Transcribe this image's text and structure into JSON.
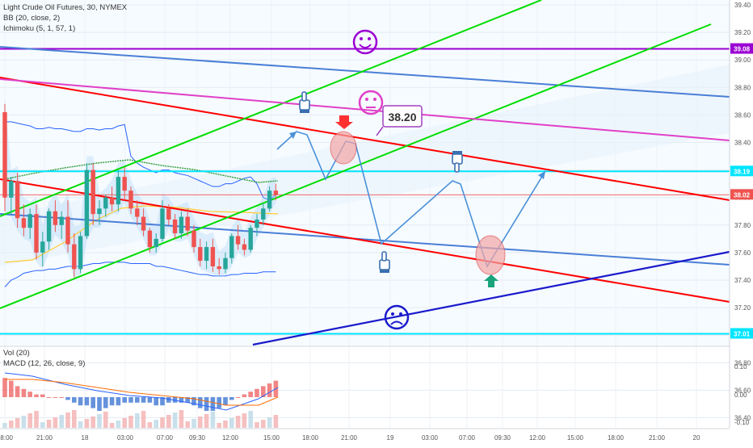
{
  "legend": {
    "symbol": "Light Crude Oil Futures, 30, NYMEX",
    "bb": "BB (20, close, 2)",
    "ichimoku": "Ichimoku (5, 1, 57, 1)",
    "vol": "Vol (20)",
    "macd": "MACD (12, 26, close, 9)"
  },
  "colors": {
    "up": "#26a69a",
    "down": "#ef5350",
    "red_channel": "#ff0000",
    "green_channel": "#00dd00",
    "blue_channel": "#4a7fd6",
    "dark_blue_line": "#1a1acc",
    "magenta_line": "#e040c8",
    "purple_line": "#9b00d3",
    "cyan_line": "#00e5ff",
    "path_arrows": "#4a90d9"
  },
  "chart_data": {
    "type": "candlestick",
    "title": "Light Crude Oil Futures, 30, NYMEX",
    "ylim": [
      36.3,
      39.45
    ],
    "y_ticks": [
      "39.40",
      "39.20",
      "39.00",
      "38.80",
      "38.60",
      "38.40",
      "38.20",
      "38.00",
      "37.80",
      "37.60",
      "37.40",
      "37.20",
      "37.00",
      "36.80",
      "36.60",
      "36.40"
    ],
    "x_ticks": [
      "18:00",
      "21:00",
      "18",
      "03:00",
      "07:00",
      "09:30",
      "12:00",
      "15:00",
      "18:00",
      "21:00",
      "19",
      "03:00",
      "07:00",
      "09:30",
      "12:00",
      "15:00",
      "18:00",
      "21:00",
      "20"
    ],
    "price_labels": [
      {
        "text": "39.08",
        "value": 39.08,
        "color": "#9b00d3"
      },
      {
        "text": "38.19",
        "value": 38.19,
        "color": "#00e5ff"
      },
      {
        "text": "38.02",
        "value": 38.02,
        "color": "#ef5350"
      },
      {
        "text": "37.01",
        "value": 37.01,
        "color": "#00e5ff"
      }
    ],
    "horizontal_lines": [
      {
        "name": "resistance",
        "value": 39.08,
        "color": "#9b00d3"
      },
      {
        "name": "level-38.19",
        "value": 38.19,
        "color": "#00e5ff"
      },
      {
        "name": "level-37.01",
        "value": 37.01,
        "color": "#00e5ff"
      },
      {
        "name": "last-price",
        "value": 38.02,
        "color": "#ef5350"
      }
    ],
    "candles": [
      [
        38.62,
        38.68,
        37.9,
        38.0
      ],
      [
        38.0,
        38.15,
        37.88,
        38.12
      ],
      [
        38.12,
        38.18,
        37.78,
        37.85
      ],
      [
        37.85,
        37.95,
        37.72,
        37.78
      ],
      [
        37.78,
        37.92,
        37.7,
        37.88
      ],
      [
        37.88,
        37.95,
        37.55,
        37.6
      ],
      [
        37.6,
        37.75,
        37.5,
        37.68
      ],
      [
        37.68,
        37.92,
        37.62,
        37.9
      ],
      [
        37.9,
        37.98,
        37.75,
        37.8
      ],
      [
        37.8,
        37.9,
        37.7,
        37.86
      ],
      [
        37.86,
        37.98,
        37.6,
        37.66
      ],
      [
        37.66,
        37.74,
        37.42,
        37.48
      ],
      [
        37.48,
        37.75,
        37.45,
        37.72
      ],
      [
        37.72,
        38.25,
        37.7,
        38.2
      ],
      [
        38.2,
        38.25,
        37.8,
        37.88
      ],
      [
        37.88,
        37.98,
        37.8,
        37.92
      ],
      [
        37.92,
        38.02,
        37.86,
        38.0
      ],
      [
        38.0,
        38.08,
        37.9,
        37.95
      ],
      [
        37.95,
        38.2,
        37.9,
        38.15
      ],
      [
        38.15,
        38.22,
        37.98,
        38.05
      ],
      [
        38.05,
        38.08,
        37.88,
        37.92
      ],
      [
        37.92,
        37.98,
        37.8,
        37.86
      ],
      [
        37.86,
        37.92,
        37.72,
        37.76
      ],
      [
        37.76,
        37.78,
        37.6,
        37.64
      ],
      [
        37.64,
        37.74,
        37.6,
        37.7
      ],
      [
        37.7,
        37.98,
        37.68,
        37.92
      ],
      [
        37.92,
        37.95,
        37.8,
        37.84
      ],
      [
        37.84,
        37.88,
        37.7,
        37.74
      ],
      [
        37.74,
        37.9,
        37.7,
        37.86
      ],
      [
        37.86,
        37.92,
        37.72,
        37.76
      ],
      [
        37.76,
        37.8,
        37.6,
        37.64
      ],
      [
        37.64,
        37.7,
        37.5,
        37.54
      ],
      [
        37.54,
        37.68,
        37.48,
        37.64
      ],
      [
        37.64,
        37.7,
        37.46,
        37.5
      ],
      [
        37.5,
        37.56,
        37.44,
        37.48
      ],
      [
        37.48,
        37.6,
        37.45,
        37.56
      ],
      [
        37.56,
        37.74,
        37.52,
        37.72
      ],
      [
        37.72,
        37.8,
        37.62,
        37.66
      ],
      [
        37.66,
        37.7,
        37.58,
        37.62
      ],
      [
        37.62,
        37.8,
        37.6,
        37.78
      ],
      [
        37.78,
        37.88,
        37.72,
        37.84
      ],
      [
        37.84,
        37.96,
        37.8,
        37.92
      ],
      [
        37.92,
        38.08,
        37.9,
        38.05
      ],
      [
        38.05,
        38.1,
        37.98,
        38.02
      ]
    ],
    "bands": {
      "upper": [
        38.55,
        38.55,
        38.54,
        38.53,
        38.52,
        38.5,
        38.5,
        38.51,
        38.5,
        38.5,
        38.49,
        38.48,
        38.48,
        38.5,
        38.5,
        38.49,
        38.5,
        38.5,
        38.52,
        38.53,
        38.3,
        38.25,
        38.22,
        38.2,
        38.18,
        38.2,
        38.2,
        38.18,
        38.17,
        38.16,
        38.14,
        38.12,
        38.1,
        38.08,
        38.08,
        38.1,
        38.1,
        38.12,
        38.14,
        38.15,
        38.1,
        38.0,
        37.98,
        38.02
      ],
      "lower": [
        37.35,
        37.4,
        37.42,
        37.45,
        37.46,
        37.47,
        37.47,
        37.48,
        37.48,
        37.49,
        37.5,
        37.5,
        37.5,
        37.51,
        37.52,
        37.52,
        37.53,
        37.53,
        37.53,
        37.53,
        37.52,
        37.52,
        37.52,
        37.52,
        37.5,
        37.5,
        37.49,
        37.48,
        37.47,
        37.46,
        37.45,
        37.44,
        37.44,
        37.43,
        37.43,
        37.43,
        37.44,
        37.44,
        37.45,
        37.45,
        37.45,
        37.46,
        37.46,
        37.46
      ]
    },
    "macd": {
      "histogram": [
        0.07,
        0.06,
        0.04,
        0.03,
        0.02,
        0.01,
        0.01,
        0.0,
        0.0,
        0.0,
        -0.01,
        -0.02,
        -0.03,
        -0.03,
        -0.04,
        -0.05,
        -0.04,
        -0.03,
        -0.03,
        -0.02,
        -0.02,
        -0.02,
        -0.02,
        -0.02,
        -0.03,
        -0.03,
        -0.02,
        -0.02,
        -0.02,
        -0.02,
        -0.03,
        -0.04,
        -0.05,
        -0.05,
        -0.04,
        -0.03,
        -0.01,
        0.0,
        0.01,
        0.02,
        0.03,
        0.04,
        0.05,
        0.06
      ]
    }
  },
  "annotations": {
    "price_callout": "38.20",
    "happy_face": "☺",
    "neutral_face": "😐",
    "sad_face": "☹"
  }
}
